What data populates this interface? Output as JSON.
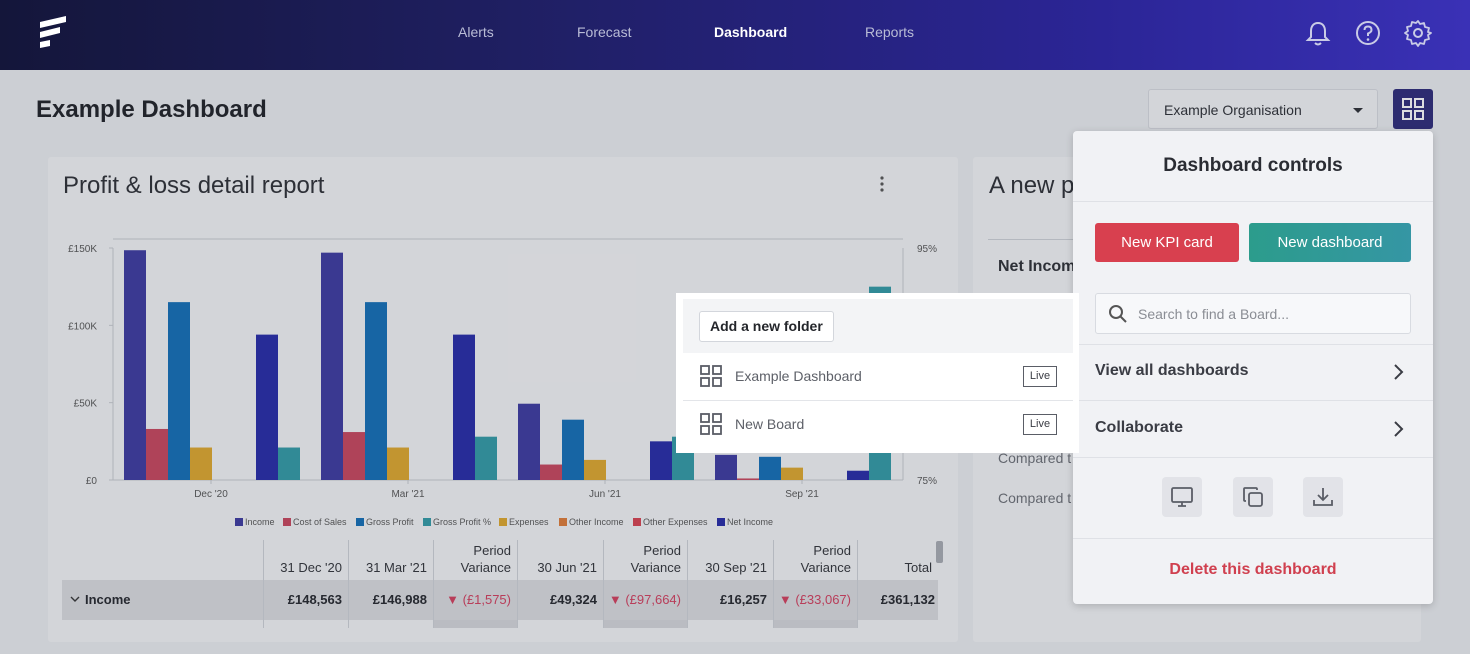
{
  "nav": {
    "links": [
      "Alerts",
      "Forecast",
      "Dashboard",
      "Reports"
    ],
    "active": "Dashboard",
    "icons": [
      "bell-icon",
      "help-icon",
      "gear-icon"
    ]
  },
  "page": {
    "title": "Example Dashboard",
    "org_select": "Example Organisation"
  },
  "card1": {
    "title": "Profit & loss detail report"
  },
  "card2": {
    "title": "A new p",
    "net_income": "Net Incom",
    "compared_1": "Compared t",
    "compared_2": "Compared t"
  },
  "chart_data": {
    "type": "bar",
    "categories": [
      "Dec '20",
      "Mar '21",
      "Jun '21",
      "Sep '21"
    ],
    "y_left_ticks": [
      "£150K",
      "£100K",
      "£50K",
      "£0"
    ],
    "y_right_ticks": [
      "95%",
      "75%"
    ],
    "ylim": [
      0,
      150000
    ],
    "legend": [
      "Income",
      "Cost of Sales",
      "Gross Profit",
      "Gross Profit %",
      "Expenses",
      "Other Income",
      "Other Expenses",
      "Net Income"
    ],
    "colors": {
      "Income": "#3a37a0",
      "Cost of Sales": "#c8445c",
      "Gross Profit": "#0f6db8",
      "Gross Profit %": "#2f9aa6",
      "Expenses": "#e0a82a",
      "Other Income": "#e07b35",
      "Other Expenses": "#d8404f",
      "Net Income": "#2328a8"
    },
    "groups": [
      {
        "Income": 148563,
        "Cost of Sales": 33000,
        "Gross Profit": 115000,
        "Expenses": 21000
      },
      {
        "Net Income": 94000,
        "Gross Profit %": 21000
      },
      {
        "Income": 146988,
        "Cost of Sales": 31000,
        "Gross Profit": 115000,
        "Expenses": 21000
      },
      {
        "Net Income": 94000,
        "Gross Profit %": 28000
      },
      {
        "Income": 49324,
        "Cost of Sales": 10000,
        "Gross Profit": 39000,
        "Expenses": 13000
      },
      {
        "Net Income": 25000,
        "Gross Profit %": 28000
      },
      {
        "Income": 16257,
        "Cost of Sales": 1000,
        "Gross Profit": 15000,
        "Expenses": 8000
      },
      {
        "Net Income": 6000,
        "Gross Profit %": 125000
      }
    ]
  },
  "table": {
    "headers": [
      "31 Dec '20",
      "31 Mar '21",
      "Period Variance",
      "30 Jun '21",
      "Period Variance",
      "30 Sep '21",
      "Period Variance",
      "Total"
    ],
    "row_label": "Income",
    "row_values": [
      "£148,563",
      "£146,988",
      "▼ (£1,575)",
      "£49,324",
      "▼ (£97,664)",
      "£16,257",
      "▼ (£33,067)",
      "£361,132"
    ]
  },
  "popup": {
    "add_folder": "Add a new folder",
    "boards": [
      {
        "name": "Example Dashboard",
        "status": "Live"
      },
      {
        "name": "New Board",
        "status": "Live"
      }
    ]
  },
  "controls": {
    "title": "Dashboard controls",
    "new_kpi": "New KPI card",
    "new_dashboard": "New dashboard",
    "search_placeholder": "Search to find a Board...",
    "view_all": "View all dashboards",
    "collaborate": "Collaborate",
    "icons": [
      "monitor-icon",
      "copy-icon",
      "download-icon"
    ],
    "delete": "Delete this dashboard"
  }
}
